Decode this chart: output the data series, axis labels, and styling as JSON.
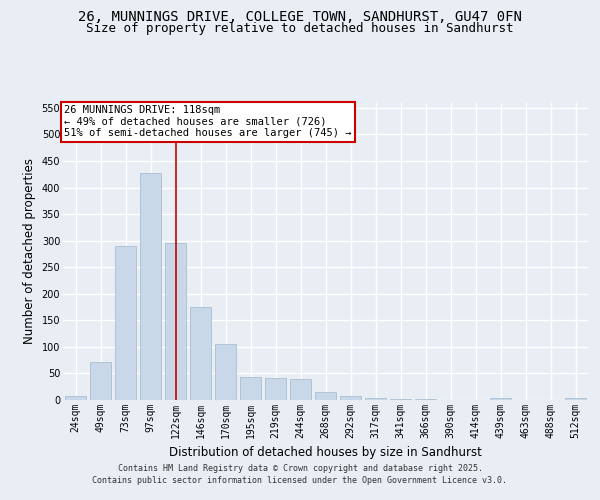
{
  "title_line1": "26, MUNNINGS DRIVE, COLLEGE TOWN, SANDHURST, GU47 0FN",
  "title_line2": "Size of property relative to detached houses in Sandhurst",
  "xlabel": "Distribution of detached houses by size in Sandhurst",
  "ylabel": "Number of detached properties",
  "categories": [
    "24sqm",
    "49sqm",
    "73sqm",
    "97sqm",
    "122sqm",
    "146sqm",
    "170sqm",
    "195sqm",
    "219sqm",
    "244sqm",
    "268sqm",
    "292sqm",
    "317sqm",
    "341sqm",
    "366sqm",
    "390sqm",
    "414sqm",
    "439sqm",
    "463sqm",
    "488sqm",
    "512sqm"
  ],
  "values": [
    8,
    72,
    290,
    428,
    295,
    175,
    105,
    43,
    41,
    39,
    15,
    8,
    3,
    1,
    1,
    0,
    0,
    3,
    0,
    0,
    3
  ],
  "bar_color": "#c8d8e8",
  "bar_edge_color": "#a0b8cc",
  "vline_color": "#cc0000",
  "vline_x_index": 4,
  "annotation_title": "26 MUNNINGS DRIVE: 118sqm",
  "annotation_line2": "← 49% of detached houses are smaller (726)",
  "annotation_line3": "51% of semi-detached houses are larger (745) →",
  "annotation_box_color": "#cc0000",
  "annotation_bg": "#ffffff",
  "background_color": "#e8eef4",
  "grid_color": "#ffffff",
  "ylim": [
    0,
    560
  ],
  "yticks": [
    0,
    50,
    100,
    150,
    200,
    250,
    300,
    350,
    400,
    450,
    500,
    550
  ],
  "footer_line1": "Contains HM Land Registry data © Crown copyright and database right 2025.",
  "footer_line2": "Contains public sector information licensed under the Open Government Licence v3.0.",
  "title_fontsize": 10,
  "subtitle_fontsize": 9,
  "axis_label_fontsize": 8.5,
  "tick_fontsize": 7,
  "annotation_fontsize": 7.5,
  "footer_fontsize": 6
}
